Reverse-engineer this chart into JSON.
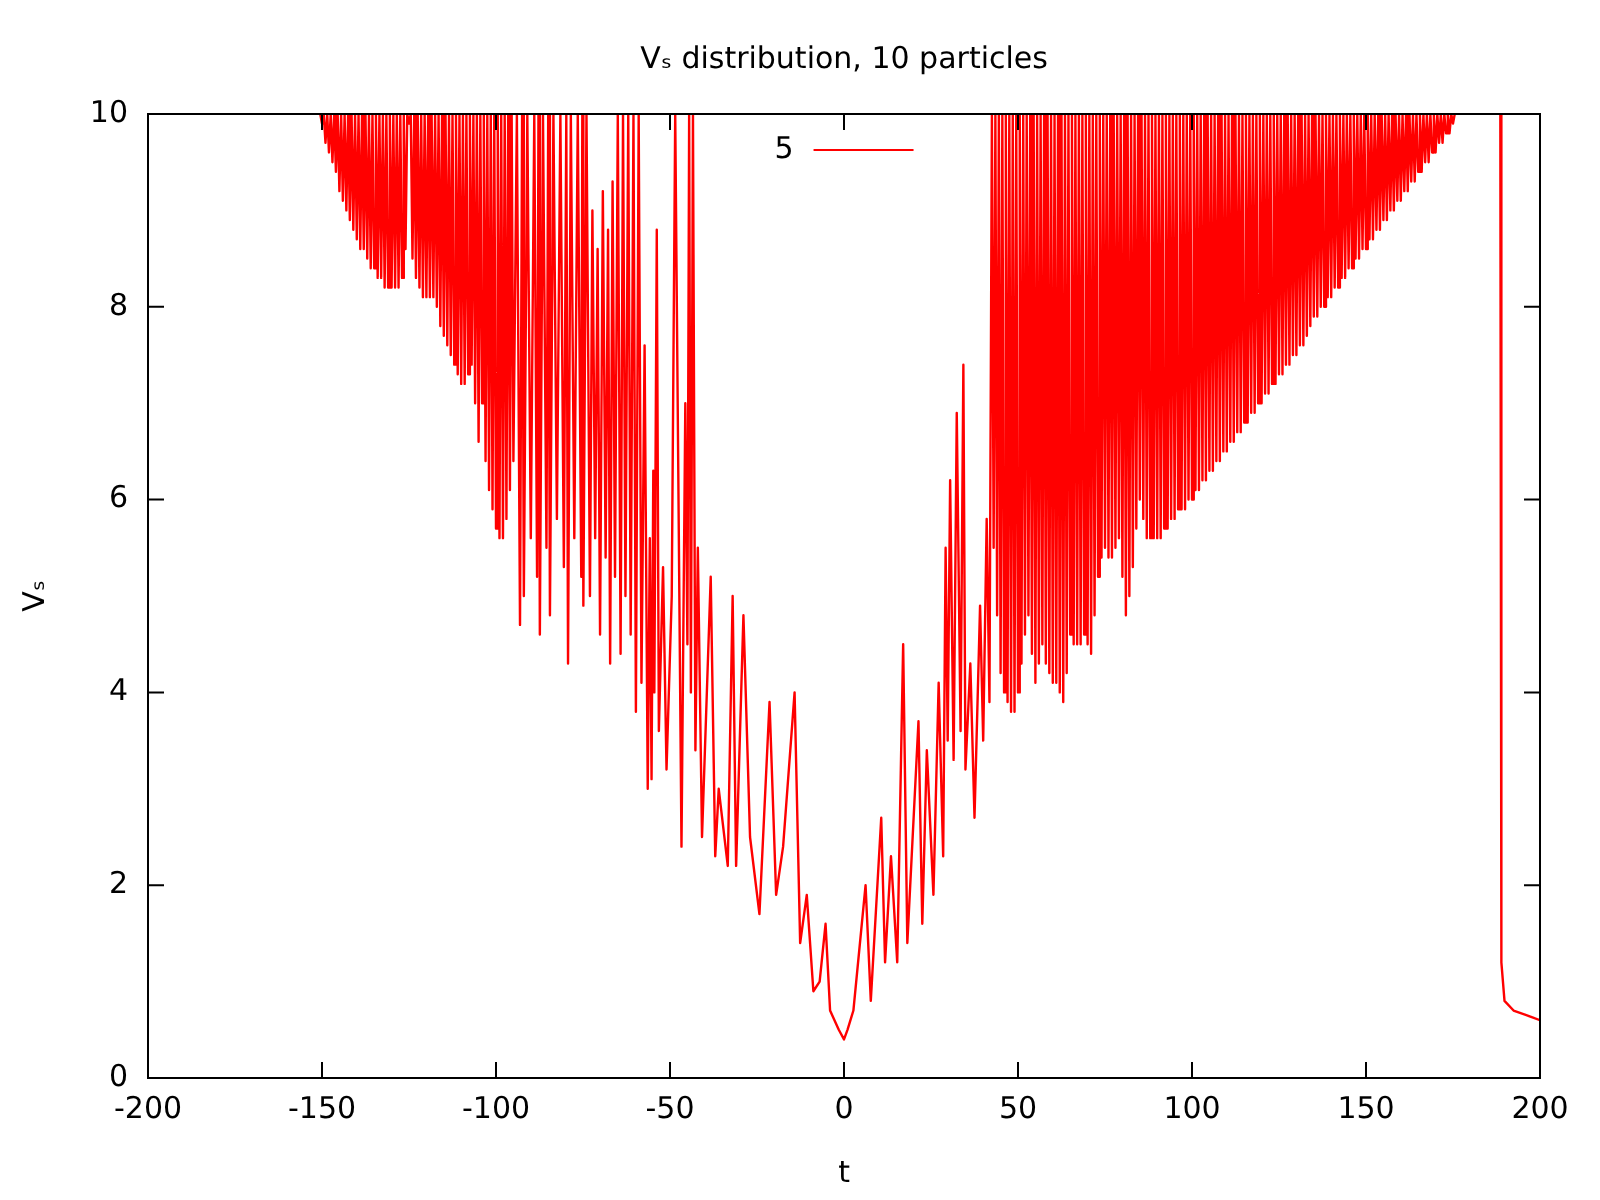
{
  "chart_data": {
    "type": "line",
    "title": "Vₛ distribution, 10 particles",
    "xlabel": "t",
    "ylabel": "Vₛ",
    "xlim": [
      -200,
      200
    ],
    "xticks": [
      -200,
      -150,
      -100,
      -50,
      0,
      50,
      100,
      150,
      200
    ],
    "ylim": [
      0,
      10
    ],
    "yticks": [
      0,
      2,
      4,
      6,
      8,
      10
    ],
    "legend": "top",
    "series": [
      {
        "name": "5",
        "color": "#ff0000",
        "x": [
          -150.5,
          -150,
          -149.5,
          -149,
          -148.5,
          -148,
          -147.5,
          -147,
          -146.5,
          -146,
          -145.5,
          -145,
          -144.5,
          -144,
          -143.5,
          -143,
          -142.5,
          -142,
          -141.5,
          -141,
          -140.5,
          -140,
          -139.5,
          -139,
          -138.5,
          -138,
          -137.5,
          -137,
          -136.5,
          -136,
          -135.5,
          -135,
          -134.5,
          -134,
          -133.5,
          -133,
          -132.5,
          -132,
          -131.5,
          -131,
          -130.5,
          -130,
          -129.5,
          -129,
          -128.5,
          -128,
          -127.5,
          -127,
          -126.5,
          -126,
          -125.5,
          -125,
          -124.5,
          -124,
          -123.5,
          -123,
          -122.5,
          -122,
          -121.5,
          -121,
          -120.5,
          -120,
          -119.5,
          -119,
          -118.5,
          -118,
          -117.5,
          -117,
          -116.5,
          -116,
          -115.5,
          -115,
          -114.5,
          -114,
          -113.5,
          -113,
          -112.5,
          -112,
          -111.5,
          -111,
          -110.5,
          -110,
          -109.5,
          -109,
          -108.5,
          -108,
          -107.5,
          -107,
          -106.5,
          -106,
          -105.5,
          -105,
          -104.5,
          -104,
          -103.5,
          -103,
          -102.5,
          -102,
          -101.5,
          -101,
          -100.5,
          -100,
          -99.5,
          -99,
          -98.5,
          -98,
          -97.5,
          -97,
          -96.5,
          -96,
          -95.5,
          -95,
          -94,
          -93.1,
          -92.5,
          -92,
          -91,
          -90,
          -89,
          -88.2,
          -87.8,
          -87.4,
          -86.5,
          -85.5,
          -85,
          -84.5,
          -83.5,
          -82.5,
          -81.5,
          -80.5,
          -79.8,
          -79.3,
          -78.5,
          -77.5,
          -76.5,
          -75.5,
          -75.2,
          -74.9,
          -74,
          -73,
          -72.3,
          -71.5,
          -70.8,
          -70.1,
          -69.3,
          -68.5,
          -67.8,
          -67.2,
          -66.5,
          -65.8,
          -65,
          -64.2,
          -63.5,
          -62.8,
          -62,
          -61.3,
          -60.5,
          -59.8,
          -59,
          -58.2,
          -57.3,
          -56.4,
          -55.8,
          -55.3,
          -54.8,
          -54.5,
          -53.8,
          -53.2,
          -52,
          -51,
          -49.5,
          -48.5,
          -46.7,
          -45.6,
          -45,
          -44.5,
          -44,
          -43.4,
          -42.7,
          -42,
          -40.8,
          -38.3,
          -37,
          -36,
          -33.4,
          -32,
          -31,
          -28.9,
          -27,
          -24.3,
          -21.4,
          -19.5,
          -17.5,
          -14.2,
          -12.6,
          -10.7,
          -8.8,
          -7,
          -5.3,
          -4,
          -1.5,
          0,
          1,
          2.7,
          6.2,
          7.7,
          10.7,
          11.8,
          13.5,
          15.3,
          17,
          18.2,
          21.4,
          22.5,
          23.8,
          25.7,
          27.2,
          28.5,
          29.2,
          29.8,
          30.5,
          31.5,
          32.4,
          33.5,
          34.3,
          34.9,
          36.3,
          37.5,
          39.1,
          40,
          41,
          41.8,
          42.5,
          43,
          43.5,
          44,
          44.5,
          45,
          45.5,
          46,
          46.5,
          47,
          47.5,
          48,
          48.5,
          49,
          49.5,
          50,
          50.5,
          51,
          51.5,
          52,
          52.5,
          53,
          53.5,
          54,
          54.5,
          55,
          55.5,
          56,
          56.5,
          57,
          57.5,
          58,
          58.5,
          59,
          59.5,
          60,
          60.5,
          61,
          61.5,
          62,
          62.5,
          63,
          63.5,
          64,
          64.5,
          65,
          65.5,
          66,
          66.5,
          67,
          67.5,
          68,
          68.5,
          69,
          69.5,
          70,
          70.5,
          71,
          71.5,
          72,
          72.5,
          73,
          73.5,
          74,
          74.5,
          75,
          75.5,
          76,
          76.5,
          77,
          77.5,
          78,
          78.5,
          79,
          79.5,
          80,
          80.5,
          81,
          81.5,
          82,
          82.5,
          83,
          83.5,
          84,
          84.5,
          85,
          85.5,
          86,
          86.5,
          87,
          87.5,
          88,
          88.5,
          89,
          89.5,
          90,
          90.5,
          91,
          91.5,
          92,
          92.5,
          93,
          93.5,
          94,
          94.5,
          95,
          95.5,
          96,
          96.5,
          97,
          97.5,
          98,
          98.5,
          99,
          99.5,
          100,
          100.5,
          101,
          101.5,
          102,
          102.5,
          103,
          103.5,
          104,
          104.5,
          105,
          105.5,
          106,
          106.5,
          107,
          107.5,
          108,
          108.5,
          109,
          109.5,
          110,
          110.5,
          111,
          111.5,
          112,
          112.5,
          113,
          113.5,
          114,
          114.5,
          115,
          115.5,
          116,
          116.5,
          117,
          117.5,
          118,
          118.5,
          119,
          119.5,
          120,
          120.5,
          121,
          121.5,
          122,
          122.5,
          123,
          123.5,
          124,
          124.5,
          125,
          125.5,
          126,
          126.5,
          127,
          127.5,
          128,
          128.5,
          129,
          129.5,
          130,
          130.5,
          131,
          131.5,
          132,
          132.5,
          133,
          133.5,
          134,
          134.5,
          135,
          135.5,
          136,
          136.5,
          137,
          137.5,
          138,
          138.5,
          139,
          139.5,
          140,
          140.5,
          141,
          141.5,
          142,
          142.5,
          143,
          143.5,
          144,
          144.5,
          145,
          145.5,
          146,
          146.5,
          147,
          147.5,
          148,
          148.5,
          149,
          149.5,
          150,
          150.5,
          151,
          151.5,
          152,
          152.5,
          153,
          153.5,
          154,
          154.5,
          155,
          155.5,
          156,
          156.5,
          157,
          157.5,
          158,
          158.5,
          159,
          159.5,
          160,
          160.5,
          161,
          161.5,
          162,
          162.5,
          163,
          163.5,
          164,
          164.5,
          165,
          165.5,
          166,
          166.5,
          167,
          167.5,
          168,
          168.5,
          169,
          169.5,
          170,
          170.5,
          171,
          171.5,
          172,
          172.5,
          173,
          173.5,
          174,
          174.5,
          175,
          175.5,
          182,
          188.6,
          188.9,
          189.8,
          192.4,
          200
        ],
        "values": [
          10,
          9.9,
          10,
          9.7,
          10,
          9.6,
          10,
          9.5,
          10,
          9.4,
          10,
          9.2,
          10,
          9.1,
          10,
          9.0,
          10,
          8.9,
          10,
          8.8,
          10,
          8.7,
          10,
          8.6,
          10,
          8.6,
          10,
          8.5,
          10,
          8.4,
          10,
          8.4,
          10,
          8.3,
          10,
          8.3,
          10,
          8.2,
          10,
          8.2,
          10,
          8.2,
          10,
          8.2,
          10,
          8.2,
          10,
          8.3,
          10,
          8.6,
          10,
          9.9,
          10,
          8.5,
          10,
          8.3,
          10,
          8.2,
          10,
          8.1,
          10,
          8.1,
          10,
          8.1,
          10,
          8.1,
          10,
          8.0,
          10,
          7.8,
          10,
          7.7,
          10,
          7.6,
          10,
          7.5,
          10,
          7.4,
          10,
          7.3,
          10,
          7.2,
          10,
          7.2,
          10,
          7.3,
          10,
          7.4,
          10,
          7.0,
          10,
          6.6,
          10,
          7.0,
          10,
          6.4,
          10,
          6.1,
          10,
          5.9,
          10,
          5.7,
          10,
          5.6,
          10,
          5.6,
          10,
          5.8,
          10,
          6.1,
          10,
          6.4,
          10,
          4.7,
          10,
          5.0,
          10,
          5.6,
          10,
          5.2,
          10,
          4.6,
          10,
          5.5,
          10,
          4.8,
          10,
          5.8,
          10,
          5.3,
          10,
          4.3,
          10,
          5.6,
          10,
          5.2,
          10,
          4.9,
          10,
          5.0,
          9.0,
          5.6,
          8.6,
          4.6,
          9.2,
          5.4,
          8.8,
          4.3,
          9.3,
          5.2,
          10,
          4.4,
          10,
          5.0,
          10,
          4.6,
          10,
          3.8,
          10,
          4.1,
          7.6,
          3.0,
          5.6,
          3.1,
          6.3,
          4.0,
          8.8,
          3.6,
          5.3,
          3.2,
          5.0,
          10,
          2.4,
          7.0,
          4.5,
          10,
          4.0,
          10,
          3.4,
          5.5,
          2.5,
          5.2,
          2.3,
          3.0,
          2.2,
          5.0,
          2.2,
          4.8,
          2.5,
          1.7,
          3.9,
          1.9,
          2.4,
          4.0,
          1.4,
          1.9,
          0.9,
          1.0,
          1.6,
          0.7,
          0.5,
          0.4,
          0.5,
          0.7,
          2.0,
          0.8,
          2.7,
          1.2,
          2.3,
          1.2,
          4.5,
          1.4,
          3.7,
          1.6,
          3.4,
          1.9,
          4.1,
          2.3,
          5.5,
          3.5,
          6.2,
          3.3,
          6.9,
          3.6,
          7.4,
          3.2,
          4.3,
          2.7,
          4.9,
          3.5,
          5.8,
          3.9,
          10,
          5.5,
          10,
          4.8,
          10,
          4.2,
          10,
          4.0,
          10,
          3.9,
          10,
          3.8,
          10,
          3.8,
          10,
          4.0,
          10,
          4.3,
          10,
          4.6,
          10,
          4.8,
          10,
          4.4,
          10,
          4.1,
          10,
          4.3,
          10,
          4.5,
          10,
          4.3,
          10,
          4.2,
          10,
          4.1,
          10,
          4.1,
          10,
          4.0,
          10,
          3.9,
          10,
          4.2,
          10,
          4.6,
          10,
          4.5,
          10,
          4.5,
          10,
          4.5,
          10,
          4.6,
          10,
          4.5,
          10,
          4.4,
          10,
          4.8,
          10,
          5.2,
          10,
          5.4,
          10,
          5.5,
          10,
          5.4,
          10,
          5.4,
          10,
          5.5,
          10,
          5.6,
          10,
          5.2,
          10,
          4.8,
          10,
          5.0,
          10,
          5.3,
          10,
          5.7,
          10,
          6.0,
          10,
          5.8,
          10,
          5.6,
          10,
          5.6,
          10,
          5.6,
          10,
          5.6,
          10,
          5.6,
          10,
          5.7,
          10,
          5.7,
          10,
          5.8,
          10,
          5.8,
          10,
          5.9,
          10,
          5.9,
          10,
          5.9,
          10,
          6.0,
          10,
          6.0,
          10,
          6.1,
          10,
          6.1,
          10,
          6.2,
          10,
          6.2,
          10,
          6.3,
          10,
          6.3,
          10,
          6.4,
          10,
          6.4,
          10,
          6.5,
          10,
          6.5,
          10,
          6.6,
          10,
          6.6,
          10,
          6.7,
          10,
          6.7,
          10,
          6.8,
          10,
          6.8,
          10,
          6.9,
          10,
          6.9,
          10,
          7.0,
          10,
          7.0,
          10,
          7.1,
          10,
          7.1,
          10,
          7.2,
          10,
          7.2,
          10,
          7.3,
          10,
          7.3,
          10,
          7.4,
          10,
          7.4,
          10,
          7.5,
          10,
          7.5,
          10,
          7.6,
          10,
          7.6,
          10,
          7.7,
          10,
          7.8,
          10,
          7.9,
          10,
          7.9,
          10,
          8.0,
          10,
          8.0,
          10,
          8.1,
          10,
          8.1,
          10,
          8.2,
          10,
          8.2,
          10,
          8.3,
          10,
          8.3,
          10,
          8.4,
          10,
          8.4,
          10,
          8.5,
          10,
          8.5,
          10,
          8.6,
          10,
          8.6,
          10,
          8.7,
          10,
          8.7,
          10,
          8.8,
          10,
          8.8,
          10,
          8.9,
          10,
          8.9,
          10,
          9.0,
          10,
          9.0,
          10,
          9.1,
          10,
          9.1,
          10,
          9.2,
          10,
          9.2,
          10,
          9.3,
          10,
          9.3,
          10,
          9.4,
          10,
          9.4,
          10,
          9.5,
          10,
          9.5,
          10,
          9.6,
          10,
          9.6,
          10,
          9.7,
          10,
          9.7,
          10,
          9.8,
          10,
          9.8,
          10,
          9.9,
          10,
          null,
          10,
          1.2,
          0.8,
          0.7,
          0.6
        ]
      }
    ]
  }
}
